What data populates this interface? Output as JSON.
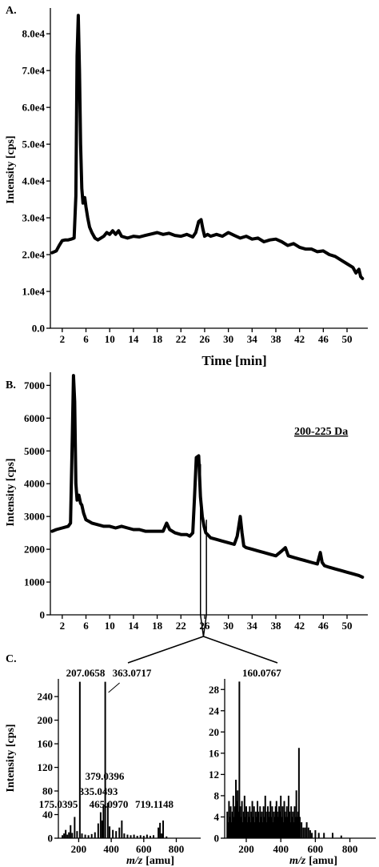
{
  "chart_data": [
    {
      "panel_label": "A.",
      "type": "line",
      "xlabel": "Time [min]",
      "ylabel": "Intensity [cps]",
      "xlim": [
        0,
        53.5
      ],
      "ylim": [
        0,
        87000
      ],
      "x_ticks": [
        2,
        6,
        10,
        14,
        18,
        22,
        26,
        30,
        34,
        38,
        42,
        46,
        50
      ],
      "x_tick_labels": [
        "2",
        "6",
        "10",
        "14",
        "18",
        "22",
        "26",
        "30",
        "34",
        "38",
        "42",
        "46",
        "50"
      ],
      "y_ticks": [
        0,
        10000,
        20000,
        30000,
        40000,
        50000,
        60000,
        70000,
        80000
      ],
      "y_tick_labels": [
        "0.0",
        "1.0e4",
        "2.0e4",
        "3.0e4",
        "4.0e4",
        "5.0e4",
        "6.0e4",
        "7.0e4",
        "8.0e4"
      ],
      "series": [
        {
          "x": [
            0.3,
            1.0,
            1.5,
            2.0,
            2.5,
            3.0,
            3.5,
            4.0,
            4.3,
            4.5,
            4.7,
            4.9,
            5.1,
            5.3,
            5.5,
            5.8,
            6.0,
            6.3,
            6.6,
            7.0,
            7.5,
            8.0,
            8.5,
            9.0,
            9.5,
            10.0,
            10.5,
            11.0,
            11.5,
            12.0,
            13.0,
            14.0,
            15.0,
            16.0,
            17.0,
            18.0,
            19.0,
            20.0,
            21.0,
            22.0,
            23.0,
            24.0,
            24.5,
            25.0,
            25.4,
            25.7,
            26.0,
            26.5,
            27.0,
            28.0,
            29.0,
            30.0,
            31.0,
            32.0,
            33.0,
            34.0,
            35.0,
            36.0,
            37.0,
            38.0,
            39.0,
            40.0,
            41.0,
            42.0,
            43.0,
            44.0,
            45.0,
            46.0,
            47.0,
            48.0,
            49.0,
            50.0,
            51.0,
            51.5,
            52.0,
            52.3,
            52.6
          ],
          "y": [
            20500,
            21000,
            22500,
            23800,
            24000,
            24000,
            24200,
            24500,
            36000,
            74000,
            85000,
            70000,
            50000,
            38000,
            34000,
            35500,
            33000,
            30000,
            27500,
            26000,
            24500,
            24000,
            24500,
            25000,
            26000,
            25500,
            26500,
            25500,
            26500,
            25000,
            24500,
            25000,
            24800,
            25200,
            25600,
            26000,
            25500,
            25800,
            25200,
            25000,
            25500,
            24800,
            26000,
            29000,
            29500,
            27000,
            25000,
            25500,
            25000,
            25500,
            25000,
            26000,
            25200,
            24500,
            25000,
            24200,
            24500,
            23500,
            24000,
            24200,
            23500,
            22500,
            23000,
            22000,
            21500,
            21500,
            20800,
            21000,
            20000,
            19500,
            18500,
            17500,
            16500,
            15000,
            16000,
            14000,
            13500
          ]
        }
      ]
    },
    {
      "panel_label": "B.",
      "type": "line",
      "annotation": "200-225 Da",
      "ylabel": "Intensity [cps]",
      "xlim": [
        0,
        53.5
      ],
      "ylim": [
        0,
        7400
      ],
      "x_ticks": [
        2,
        6,
        10,
        14,
        18,
        22,
        26,
        30,
        34,
        38,
        42,
        46,
        50
      ],
      "x_tick_labels": [
        "2",
        "6",
        "10",
        "14",
        "18",
        "22",
        "26",
        "30",
        "34",
        "38",
        "42",
        "46",
        "50"
      ],
      "y_ticks": [
        0,
        1000,
        2000,
        3000,
        4000,
        5000,
        6000,
        7000
      ],
      "y_tick_labels": [
        "0",
        "1000",
        "2000",
        "3000",
        "4000",
        "5000",
        "6000",
        "7000"
      ],
      "series": [
        {
          "x": [
            0.3,
            1.0,
            2.0,
            3.0,
            3.4,
            3.7,
            3.9,
            4.1,
            4.3,
            4.5,
            4.8,
            5.1,
            5.3,
            5.6,
            6.0,
            6.5,
            7.0,
            8.0,
            9.0,
            10.0,
            11.0,
            12.0,
            13.0,
            14.0,
            15.0,
            16.0,
            17.0,
            18.0,
            19.0,
            19.6,
            20.1,
            21.0,
            22.0,
            23.0,
            23.5,
            24.0,
            24.3,
            24.6,
            25.0,
            25.3,
            25.6,
            25.9,
            26.2,
            26.5,
            27.0,
            28.0,
            29.0,
            30.0,
            31.0,
            31.5,
            32.0,
            32.3,
            32.6,
            33.0,
            34.0,
            35.0,
            36.0,
            37.0,
            38.0,
            39.0,
            39.6,
            40.1,
            41.0,
            42.0,
            43.0,
            44.0,
            45.0,
            45.5,
            45.8,
            46.2,
            47.0,
            48.0,
            49.0,
            50.0,
            51.0,
            52.0,
            52.6
          ],
          "y": [
            2550,
            2600,
            2650,
            2700,
            2800,
            5500,
            7300,
            6500,
            4000,
            3500,
            3650,
            3400,
            3350,
            3100,
            2900,
            2850,
            2800,
            2750,
            2700,
            2700,
            2650,
            2700,
            2650,
            2600,
            2600,
            2550,
            2550,
            2550,
            2550,
            2800,
            2600,
            2500,
            2450,
            2450,
            2400,
            2500,
            3600,
            4800,
            4850,
            3600,
            3000,
            2700,
            2500,
            2450,
            2350,
            2300,
            2250,
            2200,
            2150,
            2400,
            3000,
            2500,
            2100,
            2050,
            2000,
            1950,
            1900,
            1850,
            1800,
            1950,
            2050,
            1800,
            1750,
            1700,
            1650,
            1600,
            1550,
            1900,
            1600,
            1500,
            1450,
            1400,
            1350,
            1300,
            1250,
            1200,
            1150
          ]
        }
      ]
    },
    {
      "panel_label": "C.",
      "type": "bar",
      "ylabel": "Intensity [cps]",
      "xlabel_italic": "m/z",
      "xlabel_unit": "[amu]",
      "xlim": [
        75,
        950
      ],
      "ylim": [
        0,
        270
      ],
      "x_ticks": [
        200,
        400,
        600,
        800
      ],
      "x_tick_labels": [
        "200",
        "400",
        "600",
        "800"
      ],
      "y_ticks": [
        0,
        40,
        80,
        120,
        160,
        200,
        240
      ],
      "y_tick_labels": [
        "0",
        "40",
        "80",
        "120",
        "160",
        "200",
        "240"
      ],
      "peaks": [
        {
          "mz": 100,
          "intensity": 5
        },
        {
          "mz": 110,
          "intensity": 8
        },
        {
          "mz": 120,
          "intensity": 14
        },
        {
          "mz": 130,
          "intensity": 6
        },
        {
          "mz": 140,
          "intensity": 10
        },
        {
          "mz": 150,
          "intensity": 22
        },
        {
          "mz": 160,
          "intensity": 9
        },
        {
          "mz": 175.0395,
          "intensity": 36
        },
        {
          "mz": 190,
          "intensity": 12
        },
        {
          "mz": 207.0658,
          "intensity": 265
        },
        {
          "mz": 220,
          "intensity": 8
        },
        {
          "mz": 240,
          "intensity": 6
        },
        {
          "mz": 260,
          "intensity": 5
        },
        {
          "mz": 280,
          "intensity": 7
        },
        {
          "mz": 300,
          "intensity": 10
        },
        {
          "mz": 320,
          "intensity": 25
        },
        {
          "mz": 335.0493,
          "intensity": 44
        },
        {
          "mz": 345,
          "intensity": 30
        },
        {
          "mz": 352,
          "intensity": 55
        },
        {
          "mz": 363.0717,
          "intensity": 265
        },
        {
          "mz": 379.0396,
          "intensity": 60
        },
        {
          "mz": 390,
          "intensity": 20
        },
        {
          "mz": 410,
          "intensity": 14
        },
        {
          "mz": 430,
          "intensity": 12
        },
        {
          "mz": 450,
          "intensity": 18
        },
        {
          "mz": 465.097,
          "intensity": 30
        },
        {
          "mz": 480,
          "intensity": 8
        },
        {
          "mz": 500,
          "intensity": 6
        },
        {
          "mz": 520,
          "intensity": 5
        },
        {
          "mz": 540,
          "intensity": 6
        },
        {
          "mz": 560,
          "intensity": 4
        },
        {
          "mz": 580,
          "intensity": 5
        },
        {
          "mz": 600,
          "intensity": 4
        },
        {
          "mz": 620,
          "intensity": 6
        },
        {
          "mz": 640,
          "intensity": 4
        },
        {
          "mz": 660,
          "intensity": 5
        },
        {
          "mz": 690,
          "intensity": 18
        },
        {
          "mz": 700,
          "intensity": 26
        },
        {
          "mz": 710,
          "intensity": 8
        },
        {
          "mz": 719.1148,
          "intensity": 30
        },
        {
          "mz": 740,
          "intensity": 3
        }
      ],
      "peak_labels": [
        {
          "mz": 207.0658,
          "text": "207.0658"
        },
        {
          "mz": 363.0717,
          "text": "363.0717"
        },
        {
          "mz": 379.0396,
          "text": "379.0396"
        },
        {
          "mz": 335.0493,
          "text": "335.0493"
        },
        {
          "mz": 175.0395,
          "text": "175.0395"
        },
        {
          "mz": 465.097,
          "text": "465.0970"
        },
        {
          "mz": 719.1148,
          "text": "719.1148"
        }
      ]
    },
    {
      "type": "bar",
      "xlabel_italic": "m/z",
      "xlabel_unit": "[amu]",
      "xlim": [
        75,
        950
      ],
      "ylim": [
        0,
        30
      ],
      "x_ticks": [
        200,
        400,
        600,
        800
      ],
      "x_tick_labels": [
        "200",
        "400",
        "600",
        "800"
      ],
      "y_ticks": [
        0,
        4,
        8,
        12,
        16,
        20,
        24,
        28
      ],
      "y_tick_labels": [
        "0",
        "4",
        "8",
        "12",
        "16",
        "20",
        "24",
        "28"
      ],
      "peaks": [
        {
          "mz": 90,
          "intensity": 5
        },
        {
          "mz": 95,
          "intensity": 3
        },
        {
          "mz": 100,
          "intensity": 7
        },
        {
          "mz": 105,
          "intensity": 4
        },
        {
          "mz": 110,
          "intensity": 6
        },
        {
          "mz": 115,
          "intensity": 3
        },
        {
          "mz": 120,
          "intensity": 5
        },
        {
          "mz": 125,
          "intensity": 8
        },
        {
          "mz": 130,
          "intensity": 4
        },
        {
          "mz": 135,
          "intensity": 6
        },
        {
          "mz": 140,
          "intensity": 11
        },
        {
          "mz": 145,
          "intensity": 7
        },
        {
          "mz": 150,
          "intensity": 9
        },
        {
          "mz": 155,
          "intensity": 5
        },
        {
          "mz": 160.0767,
          "intensity": 29.5
        },
        {
          "mz": 165,
          "intensity": 6
        },
        {
          "mz": 170,
          "intensity": 4
        },
        {
          "mz": 175,
          "intensity": 7
        },
        {
          "mz": 180,
          "intensity": 3
        },
        {
          "mz": 185,
          "intensity": 5
        },
        {
          "mz": 190,
          "intensity": 8
        },
        {
          "mz": 195,
          "intensity": 4
        },
        {
          "mz": 200,
          "intensity": 6
        },
        {
          "mz": 205,
          "intensity": 3
        },
        {
          "mz": 210,
          "intensity": 5
        },
        {
          "mz": 215,
          "intensity": 4
        },
        {
          "mz": 220,
          "intensity": 6
        },
        {
          "mz": 225,
          "intensity": 3
        },
        {
          "mz": 230,
          "intensity": 5
        },
        {
          "mz": 235,
          "intensity": 7
        },
        {
          "mz": 240,
          "intensity": 4
        },
        {
          "mz": 245,
          "intensity": 6
        },
        {
          "mz": 250,
          "intensity": 3
        },
        {
          "mz": 255,
          "intensity": 5
        },
        {
          "mz": 260,
          "intensity": 4
        },
        {
          "mz": 265,
          "intensity": 7
        },
        {
          "mz": 270,
          "intensity": 5
        },
        {
          "mz": 275,
          "intensity": 3
        },
        {
          "mz": 280,
          "intensity": 6
        },
        {
          "mz": 285,
          "intensity": 4
        },
        {
          "mz": 290,
          "intensity": 5
        },
        {
          "mz": 295,
          "intensity": 3
        },
        {
          "mz": 300,
          "intensity": 6
        },
        {
          "mz": 305,
          "intensity": 4
        },
        {
          "mz": 310,
          "intensity": 8
        },
        {
          "mz": 315,
          "intensity": 5
        },
        {
          "mz": 320,
          "intensity": 3
        },
        {
          "mz": 325,
          "intensity": 6
        },
        {
          "mz": 330,
          "intensity": 4
        },
        {
          "mz": 335,
          "intensity": 5
        },
        {
          "mz": 340,
          "intensity": 7
        },
        {
          "mz": 345,
          "intensity": 4
        },
        {
          "mz": 350,
          "intensity": 6
        },
        {
          "mz": 355,
          "intensity": 3
        },
        {
          "mz": 360,
          "intensity": 5
        },
        {
          "mz": 365,
          "intensity": 4
        },
        {
          "mz": 370,
          "intensity": 6
        },
        {
          "mz": 375,
          "intensity": 7
        },
        {
          "mz": 380,
          "intensity": 5
        },
        {
          "mz": 385,
          "intensity": 4
        },
        {
          "mz": 390,
          "intensity": 6
        },
        {
          "mz": 395,
          "intensity": 5
        },
        {
          "mz": 400,
          "intensity": 8
        },
        {
          "mz": 405,
          "intensity": 4
        },
        {
          "mz": 410,
          "intensity": 6
        },
        {
          "mz": 415,
          "intensity": 3
        },
        {
          "mz": 420,
          "intensity": 7
        },
        {
          "mz": 425,
          "intensity": 5
        },
        {
          "mz": 430,
          "intensity": 4
        },
        {
          "mz": 435,
          "intensity": 6
        },
        {
          "mz": 440,
          "intensity": 4
        },
        {
          "mz": 445,
          "intensity": 8
        },
        {
          "mz": 450,
          "intensity": 5
        },
        {
          "mz": 455,
          "intensity": 3
        },
        {
          "mz": 460,
          "intensity": 6
        },
        {
          "mz": 465,
          "intensity": 4
        },
        {
          "mz": 470,
          "intensity": 5
        },
        {
          "mz": 475,
          "intensity": 3
        },
        {
          "mz": 480,
          "intensity": 6
        },
        {
          "mz": 485,
          "intensity": 4
        },
        {
          "mz": 490,
          "intensity": 9
        },
        {
          "mz": 495,
          "intensity": 4
        },
        {
          "mz": 500,
          "intensity": 5
        },
        {
          "mz": 505,
          "intensity": 17
        },
        {
          "mz": 510,
          "intensity": 4
        },
        {
          "mz": 520,
          "intensity": 3
        },
        {
          "mz": 530,
          "intensity": 2
        },
        {
          "mz": 540,
          "intensity": 2
        },
        {
          "mz": 550,
          "intensity": 3
        },
        {
          "mz": 560,
          "intensity": 2
        },
        {
          "mz": 570,
          "intensity": 1.5
        },
        {
          "mz": 580,
          "intensity": 1
        },
        {
          "mz": 600,
          "intensity": 1.5
        },
        {
          "mz": 620,
          "intensity": 1
        },
        {
          "mz": 650,
          "intensity": 1
        },
        {
          "mz": 700,
          "intensity": 1
        },
        {
          "mz": 750,
          "intensity": 0.5
        }
      ],
      "peak_labels": [
        {
          "mz": 160.0767,
          "text": "160.0767"
        }
      ]
    }
  ]
}
